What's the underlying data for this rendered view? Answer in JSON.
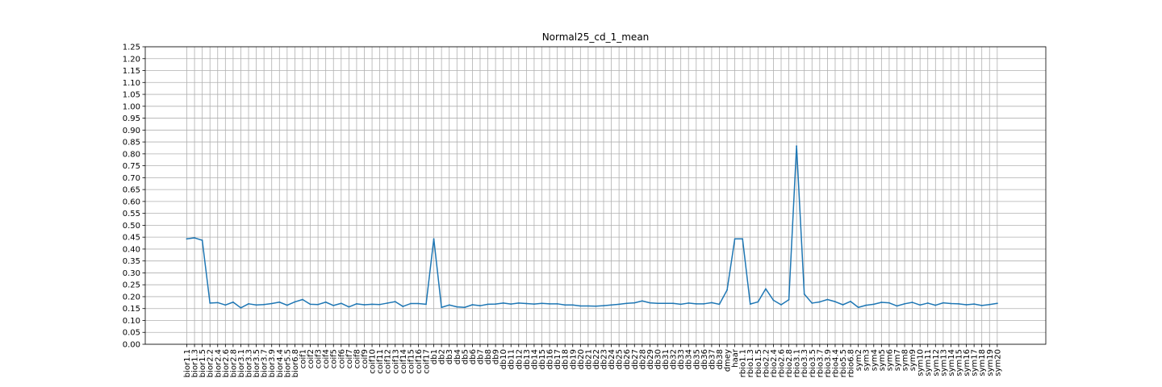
{
  "chart_data": {
    "type": "line",
    "title": "Normal25_cd_1_mean",
    "xlabel": "",
    "ylabel": "",
    "ylim": [
      0,
      1.25
    ],
    "yticks": [
      "0.00",
      "0.05",
      "0.10",
      "0.15",
      "0.20",
      "0.25",
      "0.30",
      "0.35",
      "0.40",
      "0.45",
      "0.50",
      "0.55",
      "0.60",
      "0.65",
      "0.70",
      "0.75",
      "0.80",
      "0.85",
      "0.90",
      "0.95",
      "1.00",
      "1.05",
      "1.10",
      "1.15",
      "1.20",
      "1.25"
    ],
    "grid": true,
    "line_color": "#1f77b4",
    "categories": [
      "bior1.1",
      "bior1.3",
      "bior1.5",
      "bior2.2",
      "bior2.4",
      "bior2.6",
      "bior2.8",
      "bior3.1",
      "bior3.3",
      "bior3.5",
      "bior3.7",
      "bior3.9",
      "bior4.4",
      "bior5.5",
      "bior6.8",
      "coif1",
      "coif2",
      "coif3",
      "coif4",
      "coif5",
      "coif6",
      "coif7",
      "coif8",
      "coif9",
      "coif10",
      "coif11",
      "coif12",
      "coif13",
      "coif14",
      "coif15",
      "coif16",
      "coif17",
      "db1",
      "db2",
      "db3",
      "db4",
      "db5",
      "db6",
      "db7",
      "db8",
      "db9",
      "db10",
      "db11",
      "db12",
      "db13",
      "db14",
      "db15",
      "db16",
      "db17",
      "db18",
      "db19",
      "db20",
      "db21",
      "db22",
      "db23",
      "db24",
      "db25",
      "db26",
      "db27",
      "db28",
      "db29",
      "db30",
      "db31",
      "db32",
      "db33",
      "db34",
      "db35",
      "db36",
      "db37",
      "db38",
      "dmey",
      "haar",
      "rbio1.1",
      "rbio1.3",
      "rbio1.5",
      "rbio2.2",
      "rbio2.4",
      "rbio2.6",
      "rbio2.8",
      "rbio3.1",
      "rbio3.3",
      "rbio3.5",
      "rbio3.7",
      "rbio3.9",
      "rbio4.4",
      "rbio5.5",
      "rbio6.8",
      "sym2",
      "sym3",
      "sym4",
      "sym5",
      "sym6",
      "sym7",
      "sym8",
      "sym9",
      "sym10",
      "sym11",
      "sym12",
      "sym13",
      "sym14",
      "sym15",
      "sym16",
      "sym17",
      "sym18",
      "sym19",
      "sym20"
    ],
    "series": [
      {
        "values": [
          0.443,
          0.447,
          0.437,
          0.173,
          0.175,
          0.165,
          0.177,
          0.153,
          0.17,
          0.165,
          0.167,
          0.171,
          0.177,
          0.164,
          0.178,
          0.188,
          0.168,
          0.167,
          0.177,
          0.163,
          0.172,
          0.157,
          0.17,
          0.166,
          0.168,
          0.167,
          0.173,
          0.179,
          0.159,
          0.171,
          0.171,
          0.168,
          0.443,
          0.155,
          0.165,
          0.157,
          0.155,
          0.166,
          0.162,
          0.168,
          0.169,
          0.173,
          0.169,
          0.173,
          0.171,
          0.169,
          0.172,
          0.17,
          0.17,
          0.165,
          0.165,
          0.161,
          0.161,
          0.16,
          0.162,
          0.165,
          0.168,
          0.172,
          0.174,
          0.182,
          0.174,
          0.172,
          0.172,
          0.172,
          0.168,
          0.173,
          0.17,
          0.17,
          0.175,
          0.168,
          0.228,
          0.443,
          0.443,
          0.169,
          0.178,
          0.233,
          0.185,
          0.166,
          0.187,
          0.833,
          0.211,
          0.173,
          0.178,
          0.188,
          0.179,
          0.166,
          0.18,
          0.155,
          0.164,
          0.168,
          0.176,
          0.174,
          0.161,
          0.17,
          0.176,
          0.165,
          0.173,
          0.164,
          0.174,
          0.171,
          0.17,
          0.166,
          0.169,
          0.163,
          0.167,
          0.172
        ]
      }
    ]
  }
}
